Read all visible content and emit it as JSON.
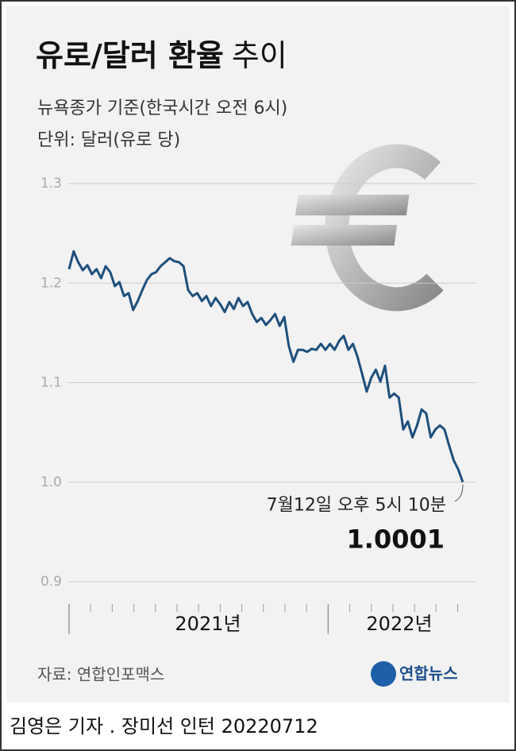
{
  "chart_data": {
    "type": "line",
    "title": "유로/달러 환율",
    "title_suffix": "추이",
    "subtitle": [
      "뉴욕종가 기준(한국시간 오전 6시)",
      "단위: 달러(유로 당)"
    ],
    "x_axis_labels": [
      "2021년",
      "2022년"
    ],
    "series": [
      {
        "color": "#1d4f7c",
        "values": [
          1.214,
          1.232,
          1.221,
          1.213,
          1.218,
          1.209,
          1.214,
          1.205,
          1.217,
          1.211,
          1.197,
          1.201,
          1.187,
          1.19,
          1.173,
          1.182,
          1.193,
          1.203,
          1.209,
          1.211,
          1.217,
          1.221,
          1.225,
          1.222,
          1.221,
          1.217,
          1.193,
          1.187,
          1.19,
          1.182,
          1.187,
          1.177,
          1.185,
          1.179,
          1.171,
          1.181,
          1.174,
          1.185,
          1.177,
          1.181,
          1.169,
          1.161,
          1.165,
          1.158,
          1.163,
          1.169,
          1.157,
          1.166,
          1.137,
          1.121,
          1.133,
          1.133,
          1.131,
          1.134,
          1.133,
          1.139,
          1.133,
          1.139,
          1.133,
          1.142,
          1.147,
          1.133,
          1.139,
          1.126,
          1.109,
          1.091,
          1.105,
          1.113,
          1.101,
          1.117,
          1.085,
          1.089,
          1.085,
          1.053,
          1.061,
          1.045,
          1.057,
          1.073,
          1.069,
          1.045,
          1.053,
          1.057,
          1.053,
          1.037,
          1.022,
          1.013,
          1.0001
        ]
      }
    ],
    "ylim": [
      0.9,
      1.3
    ],
    "yticks": [
      1.3,
      1.2,
      1.1,
      {
        "value": 1,
        "label": "1.0"
      },
      0.9
    ],
    "grid": true,
    "annotation": "7월12일 오후 5시 10분",
    "source": "자료: 연합인포맥스",
    "logo": "연합뉴스",
    "byline": "김영은 기자 . 장미선 인턴 20220712"
  }
}
